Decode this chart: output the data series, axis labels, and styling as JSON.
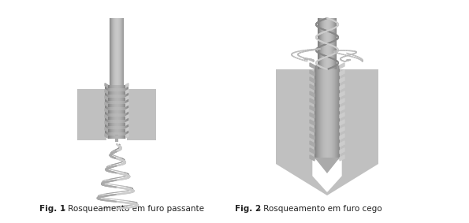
{
  "background_color": "#ffffff",
  "fig_width": 5.95,
  "fig_height": 2.83,
  "dpi": 100,
  "caption1_bold": "Fig. 1",
  "caption1_rest": " - Rosqueamento em furo passante",
  "caption2_bold": "Fig. 2",
  "caption2_rest": " - Rosqueamento em furo cego",
  "caption_fontsize": 7.5,
  "gray_block": "#c0c0c0",
  "tap_color_dark": "#888888",
  "tap_color_mid": "#aaaaaa",
  "tap_color_light": "#cccccc",
  "shank_color": "#b0b0b0",
  "white": "#ffffff"
}
